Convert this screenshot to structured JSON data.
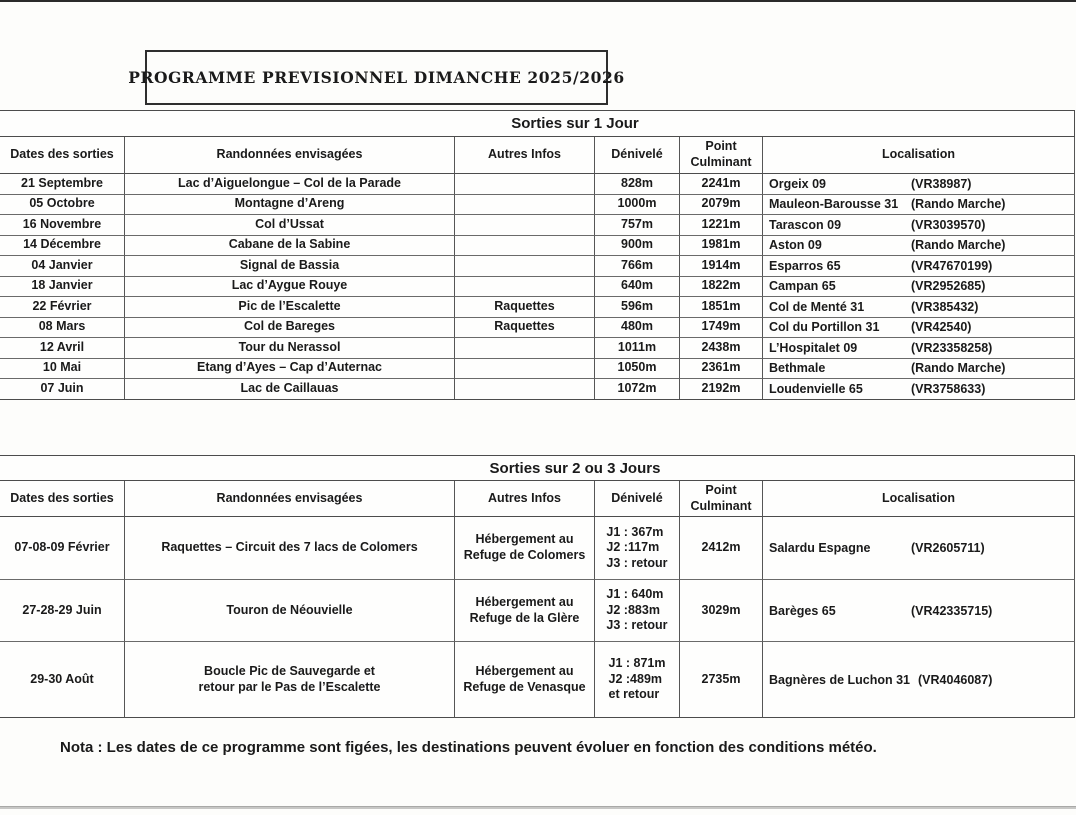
{
  "page": {
    "title": "PROGRAMME PREVISIONNEL DIMANCHE 2025/2026",
    "nota": "Nota : Les dates de ce programme sont figées, les destinations peuvent évoluer en fonction des conditions météo."
  },
  "columns": {
    "date": "Dates des sorties",
    "rando": "Randonnées envisagées",
    "infos": "Autres Infos",
    "denivele": "Dénivelé",
    "point": [
      "Point",
      "Culminant"
    ],
    "localisation": "Localisation"
  },
  "table1": {
    "section_title": "Sorties sur 1 Jour",
    "rows": [
      {
        "date": "21 Septembre",
        "rando": "Lac d’Aiguelongue – Col de la Parade",
        "infos": "",
        "denivele": "828m",
        "point": "2241m",
        "lieu": "Orgeix 09",
        "code": "(VR38987)"
      },
      {
        "date": "05 Octobre",
        "rando": "Montagne d’Areng",
        "infos": "",
        "denivele": "1000m",
        "point": "2079m",
        "lieu": "Mauleon-Barousse 31",
        "code": "(Rando Marche)"
      },
      {
        "date": "16 Novembre",
        "rando": "Col d’Ussat",
        "infos": "",
        "denivele": "757m",
        "point": "1221m",
        "lieu": "Tarascon 09",
        "code": "(VR3039570)"
      },
      {
        "date": "14 Décembre",
        "rando": "Cabane de la Sabine",
        "infos": "",
        "denivele": "900m",
        "point": "1981m",
        "lieu": "Aston 09",
        "code": "(Rando Marche)"
      },
      {
        "date": "04 Janvier",
        "rando": "Signal de Bassia",
        "infos": "",
        "denivele": "766m",
        "point": "1914m",
        "lieu": "Esparros 65",
        "code": "(VR47670199)"
      },
      {
        "date": "18 Janvier",
        "rando": "Lac d’Aygue Rouye",
        "infos": "",
        "denivele": "640m",
        "point": "1822m",
        "lieu": "Campan 65",
        "code": "(VR2952685)"
      },
      {
        "date": "22 Février",
        "rando": "Pic de l’Escalette",
        "infos": "Raquettes",
        "denivele": "596m",
        "point": "1851m",
        "lieu": "Col de Menté 31",
        "code": "(VR385432)"
      },
      {
        "date": "08 Mars",
        "rando": "Col de Bareges",
        "infos": "Raquettes",
        "denivele": "480m",
        "point": "1749m",
        "lieu": "Col du Portillon 31",
        "code": "(VR42540)"
      },
      {
        "date": "12 Avril",
        "rando": "Tour du Nerassol",
        "infos": "",
        "denivele": "1011m",
        "point": "2438m",
        "lieu": "L’Hospitalet 09",
        "code": "(VR23358258)"
      },
      {
        "date": "10 Mai",
        "rando": "Etang d’Ayes – Cap d’Auternac",
        "infos": "",
        "denivele": "1050m",
        "point": "2361m",
        "lieu": "Bethmale",
        "code": "(Rando Marche)"
      },
      {
        "date": "07 Juin",
        "rando": "Lac de Caillauas",
        "infos": "",
        "denivele": "1072m",
        "point": "2192m",
        "lieu": "Loudenvielle 65",
        "code": "(VR3758633)"
      }
    ]
  },
  "table2": {
    "section_title": "Sorties sur 2 ou 3 Jours",
    "rows": [
      {
        "date": "07-08-09 Février",
        "rando": "Raquettes – Circuit des 7 lacs de Colomers",
        "infos": [
          "Hébergement au",
          "Refuge de Colomers"
        ],
        "denivele": [
          "J1 : 367m",
          "J2 :117m",
          "J3 : retour"
        ],
        "point": "2412m",
        "lieu": "Salardu Espagne",
        "code": "(VR2605711)"
      },
      {
        "date": "27-28-29 Juin",
        "rando": "Touron de Néouvielle",
        "infos": [
          "Hébergement au",
          "Refuge de la Glère"
        ],
        "denivele": [
          "J1 : 640m",
          "J2 :883m",
          "J3 : retour"
        ],
        "point": "3029m",
        "lieu": "Barèges 65",
        "code": "(VR42335715)"
      },
      {
        "date": "29-30 Août",
        "rando": [
          "Boucle Pic de Sauvegarde et",
          "retour par le Pas de l’Escalette"
        ],
        "infos": [
          "Hébergement au",
          "Refuge de Venasque"
        ],
        "denivele": [
          "J1 : 871m",
          "J2 :489m",
          "et retour"
        ],
        "point": "2735m",
        "lieu": "Bagnères de Luchon 31",
        "code": "(VR4046087)"
      }
    ]
  }
}
